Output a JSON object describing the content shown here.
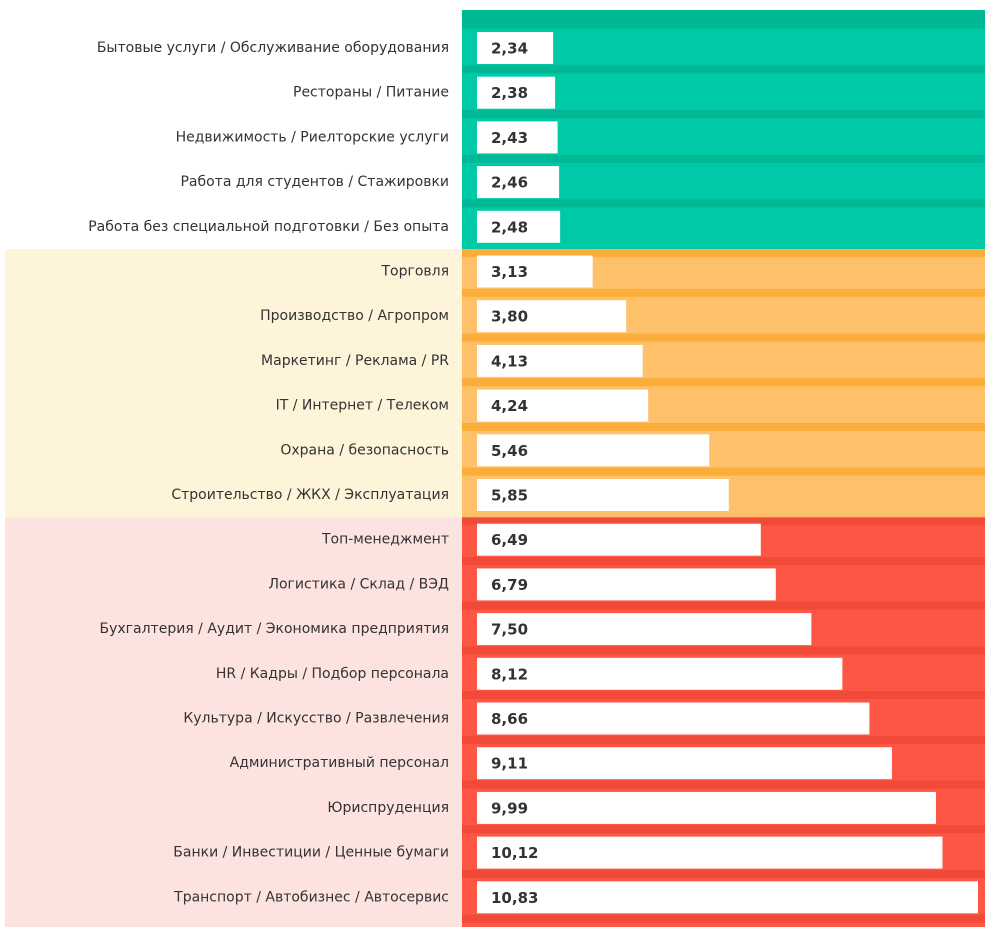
{
  "chart_data": {
    "type": "bar",
    "orientation": "horizontal",
    "groups": [
      {
        "color": "#00c9a7",
        "stripe": "#00b893",
        "label_bg": "#ffffff",
        "categories": [
          "Бытовые услуги / Обслуживание оборудования",
          "Рестораны / Питание",
          "Недвижимость / Риелторские услуги",
          "Работа для студентов / Стажировки",
          "Работа без специальной подготовки / Без опыта"
        ],
        "values": [
          2.34,
          2.38,
          2.43,
          2.46,
          2.48
        ],
        "value_labels": [
          "2,34",
          "2,38",
          "2,43",
          "2,46",
          "2,48"
        ]
      },
      {
        "color": "#fec16a",
        "stripe": "#fbad3a",
        "label_bg": "#fdf4da",
        "categories": [
          "Торговля",
          "Производство / Агропром",
          "Маркетинг / Реклама / PR",
          "IT / Интернет / Телеком",
          "Охрана / безопасность",
          "Строительство / ЖКХ / Эксплуатация"
        ],
        "values": [
          3.13,
          3.8,
          4.13,
          4.24,
          5.46,
          5.85
        ],
        "value_labels": [
          "3,13",
          "3,80",
          "4,13",
          "4,24",
          "5,46",
          "5,85"
        ]
      },
      {
        "color": "#fd5644",
        "stripe": "#f24a38",
        "label_bg": "#fde3e0",
        "categories": [
          "Топ-менеджмент",
          "Логистика / Склад / ВЭД",
          "Бухгалтерия / Аудит / Экономика предприятия",
          "HR / Кадры / Подбор персонала",
          "Культура / Искусство / Развлечения",
          "Административный персонал",
          "Юриспруденция",
          "Банки / Инвестиции / Ценные бумаги",
          "Транспорт / Автобизнес / Автосервис"
        ],
        "values": [
          6.49,
          6.79,
          7.5,
          8.12,
          8.66,
          9.11,
          9.99,
          10.12,
          10.83
        ],
        "value_labels": [
          "6,49",
          "6,79",
          "7,50",
          "8,12",
          "8,66",
          "9,11",
          "9,99",
          "10,12",
          "10,83"
        ]
      }
    ]
  }
}
